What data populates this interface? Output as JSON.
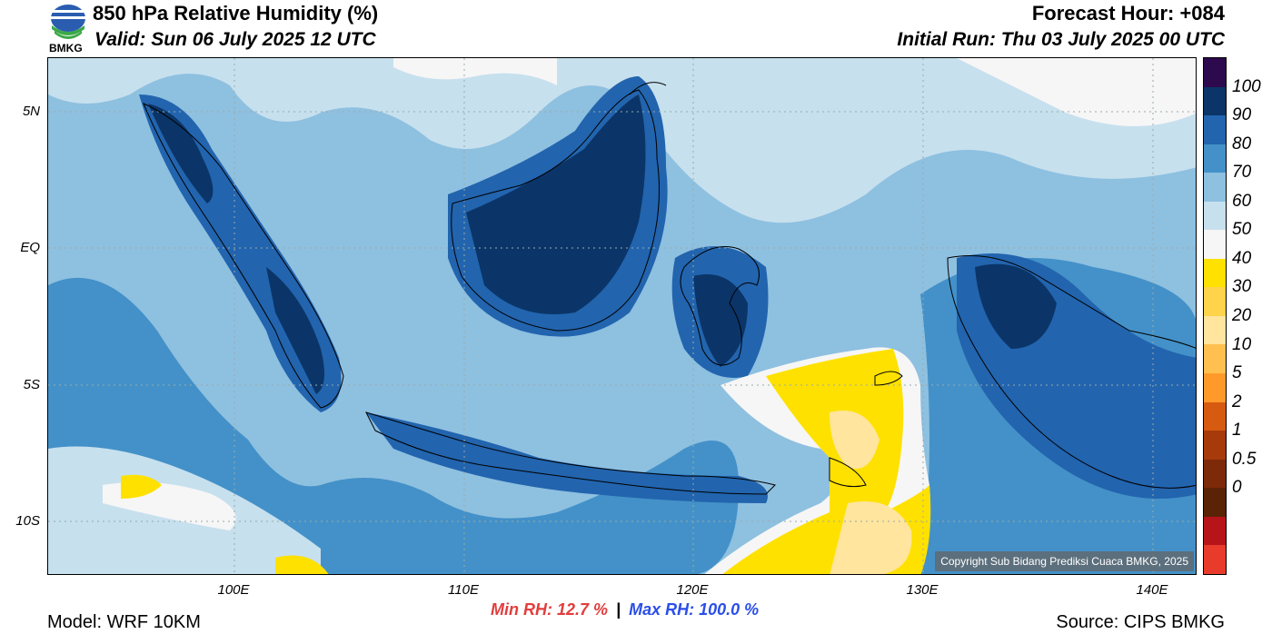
{
  "header": {
    "title": "850 hPa Relative Humidity (%)",
    "valid": "Valid: Sun 06 July 2025 12 UTC",
    "forecast_hour": "Forecast Hour: +084",
    "initial_run": "Initial Run: Thu 03 July 2025 00 UTC",
    "logo_text": "BMKG"
  },
  "axes": {
    "lat_labels": [
      "5N",
      "EQ",
      "5S",
      "10S"
    ],
    "lon_labels": [
      "100E",
      "110E",
      "120E",
      "130E",
      "140E"
    ]
  },
  "colorbar": {
    "labels": [
      "100",
      "90",
      "80",
      "70",
      "60",
      "50",
      "40",
      "30",
      "20",
      "10",
      "5",
      "2",
      "1",
      "0.5",
      "0"
    ],
    "colors": [
      "#2c0a4d",
      "#0b3568",
      "#2264ae",
      "#4391c8",
      "#8ec0e0",
      "#c7e0ee",
      "#f6f6f6",
      "#ffe100",
      "#ffd34a",
      "#ffe59e",
      "#ffc04f",
      "#ff9a2a",
      "#d65a10",
      "#a73a0b",
      "#7d2a08",
      "#5a2306",
      "#b7141a",
      "#e83b2b"
    ]
  },
  "footer": {
    "min_rh": "Min RH:  12.7 %",
    "separator": "|",
    "max_rh": "Max RH: 100.0 %",
    "model": "Model: WRF 10KM",
    "source": "Source: CIPS BMKG",
    "copyright": "Copyright Sub Bidang Prediksi Cuaca BMKG, 2025"
  }
}
